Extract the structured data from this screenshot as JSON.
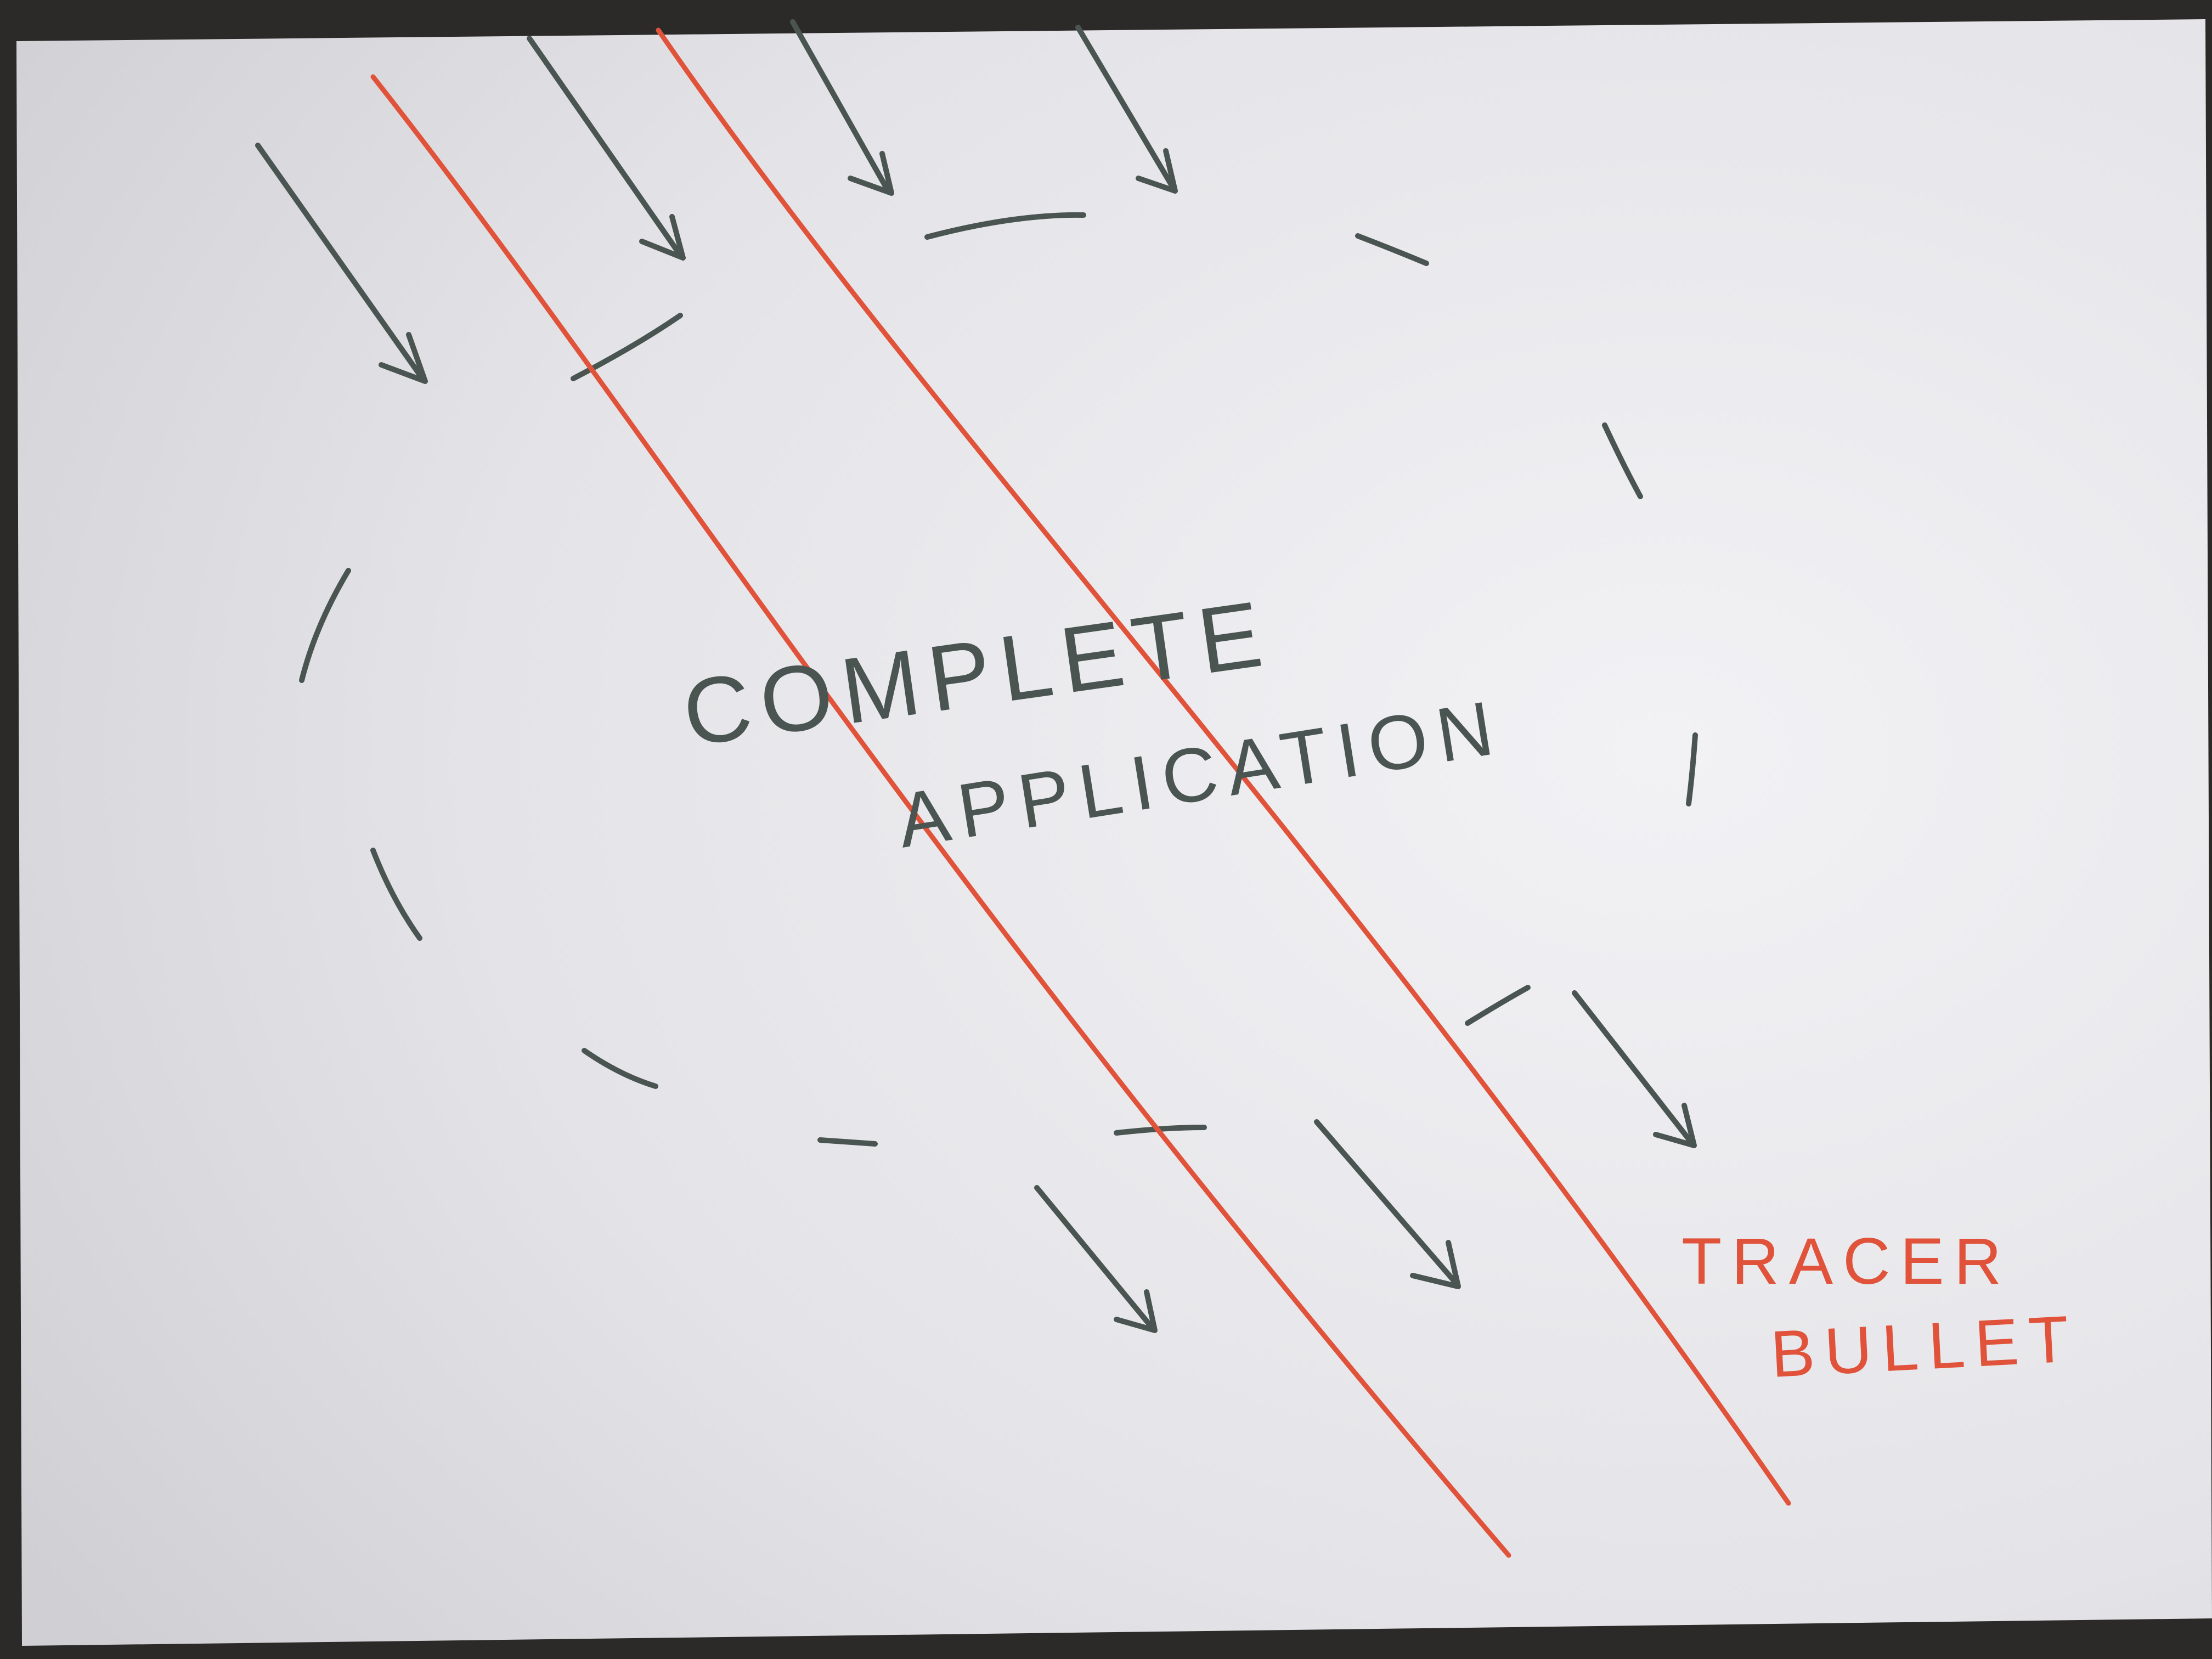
{
  "diagram": {
    "central_label": {
      "line1": "COMPLETE",
      "line2": "APPLICATION"
    },
    "side_label": {
      "line1": "TRACER",
      "line2": "BULLET"
    },
    "colors": {
      "paper": "#e6e6ea",
      "background": "#2b2a28",
      "pencil_gray": "#4a5552",
      "tracer_red": "#e0523a"
    }
  }
}
